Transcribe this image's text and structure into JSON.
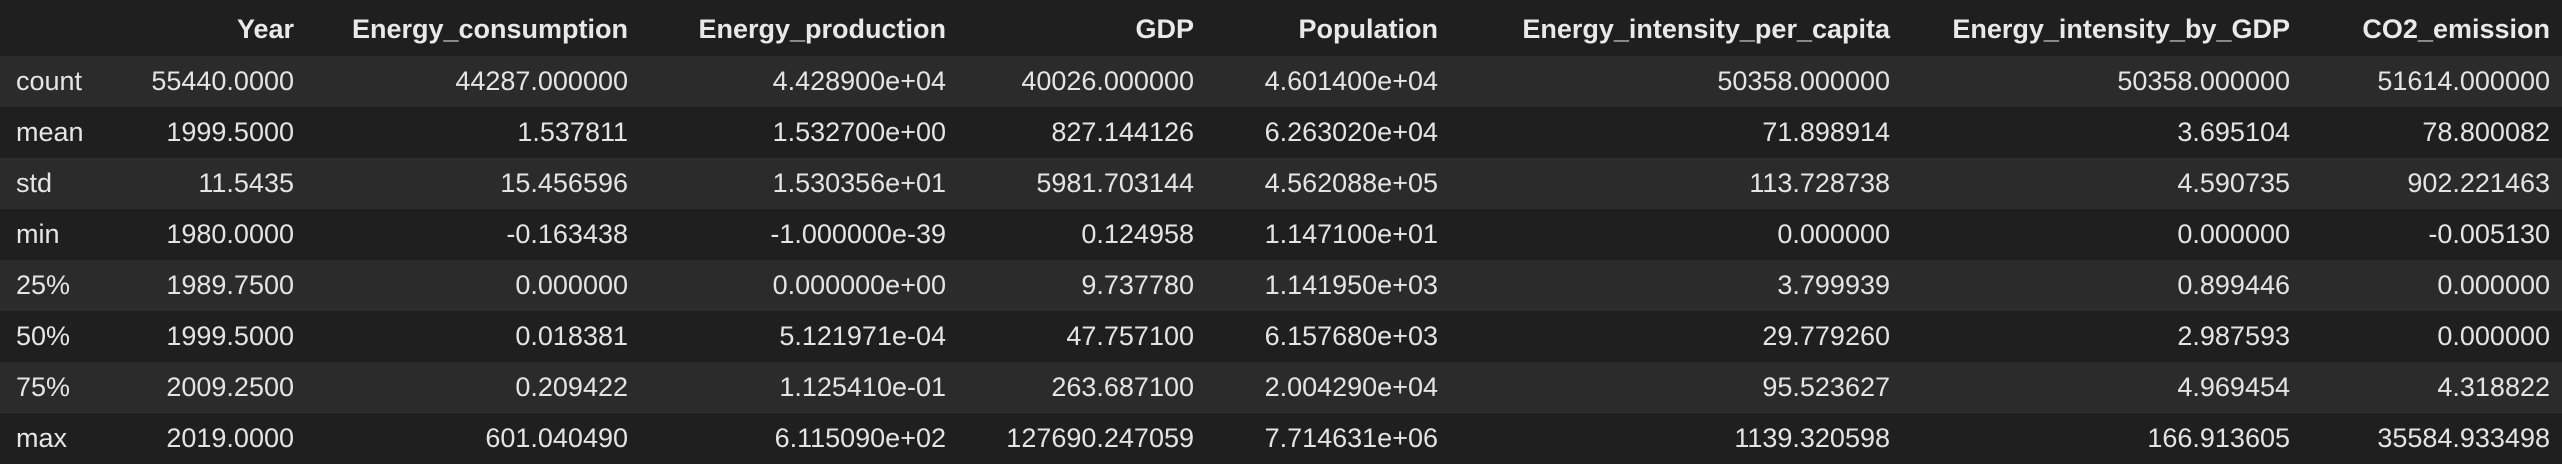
{
  "table": {
    "columns": [
      "Year",
      "Energy_consumption",
      "Energy_production",
      "GDP",
      "Population",
      "Energy_intensity_per_capita",
      "Energy_intensity_by_GDP",
      "CO2_emission"
    ],
    "rows": [
      {
        "label": "count",
        "values": [
          "55440.0000",
          "44287.000000",
          "4.428900e+04",
          "40026.000000",
          "4.601400e+04",
          "50358.000000",
          "50358.000000",
          "51614.000000"
        ]
      },
      {
        "label": "mean",
        "values": [
          "1999.5000",
          "1.537811",
          "1.532700e+00",
          "827.144126",
          "6.263020e+04",
          "71.898914",
          "3.695104",
          "78.800082"
        ]
      },
      {
        "label": "std",
        "values": [
          "11.5435",
          "15.456596",
          "1.530356e+01",
          "5981.703144",
          "4.562088e+05",
          "113.728738",
          "4.590735",
          "902.221463"
        ]
      },
      {
        "label": "min",
        "values": [
          "1980.0000",
          "-0.163438",
          "-1.000000e-39",
          "0.124958",
          "1.147100e+01",
          "0.000000",
          "0.000000",
          "-0.005130"
        ]
      },
      {
        "label": "25%",
        "values": [
          "1989.7500",
          "0.000000",
          "0.000000e+00",
          "9.737780",
          "1.141950e+03",
          "3.799939",
          "0.899446",
          "0.000000"
        ]
      },
      {
        "label": "50%",
        "values": [
          "1999.5000",
          "0.018381",
          "5.121971e-04",
          "47.757100",
          "6.157680e+03",
          "29.779260",
          "2.987593",
          "0.000000"
        ]
      },
      {
        "label": "75%",
        "values": [
          "2009.2500",
          "0.209422",
          "1.125410e-01",
          "263.687100",
          "2.004290e+04",
          "95.523627",
          "4.969454",
          "4.318822"
        ]
      },
      {
        "label": "max",
        "values": [
          "2019.0000",
          "601.040490",
          "6.115090e+02",
          "127690.247059",
          "7.714631e+06",
          "1139.320598",
          "166.913605",
          "35584.933498"
        ]
      }
    ]
  }
}
